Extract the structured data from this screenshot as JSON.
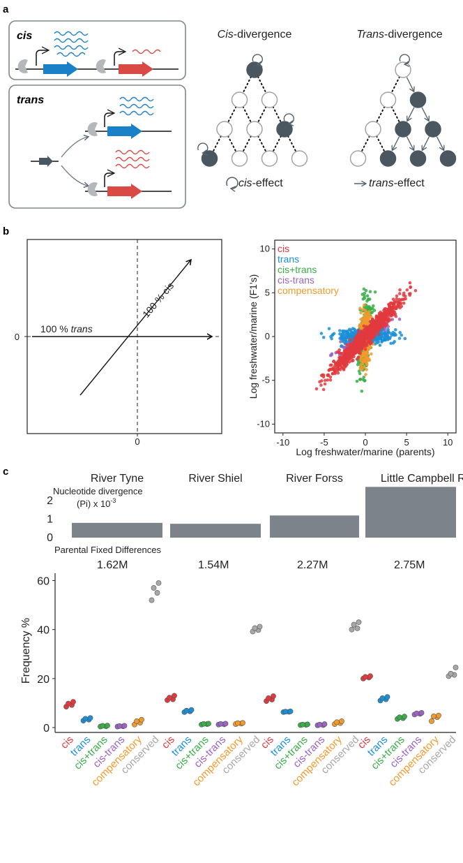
{
  "panel_a": {
    "letter": "a",
    "box_cis_label": "cis",
    "box_trans_label": "trans",
    "title_cis_italic": "Cis",
    "title_cis_rest": "-divergence",
    "title_trans_italic": "Trans",
    "title_trans_rest": "-divergence",
    "legend_cis_italic": "cis",
    "legend_cis_rest": "-effect",
    "legend_trans_italic": "trans",
    "legend_trans_rest": "-effect",
    "colors": {
      "blue": "#1a80c8",
      "red": "#d94a44",
      "node_dark": "#4a5660",
      "grey": "#9ea3a8"
    }
  },
  "panel_b": {
    "letter": "b",
    "schematic": {
      "label_100_cis": "100 % cis",
      "label_100_trans_num": "100 % ",
      "label_100_trans_word": "trans",
      "y_zero": "0",
      "x_zero": "0"
    },
    "legend": [
      {
        "name": "cis",
        "color": "#e0393e"
      },
      {
        "name": "trans",
        "color": "#1b8fd6"
      },
      {
        "name": "cis+trans",
        "color": "#3aad48"
      },
      {
        "name": "cis-trans",
        "color": "#9b63c4"
      },
      {
        "name": "compensatory",
        "color": "#f39a2b"
      }
    ]
  },
  "chart_data": [
    {
      "type": "scatter",
      "xlabel": "Log freshwater/marine (parents)",
      "ylabel": "Log freshwater/marine (F1's)",
      "xlim": [
        -11,
        11
      ],
      "ylim": [
        -11,
        11
      ],
      "xticks": [
        "-10",
        "-5",
        "0",
        "5",
        "10"
      ],
      "yticks": [
        "10",
        "5",
        "0",
        "-5",
        "-10"
      ],
      "legend_position": "top-left",
      "series": [
        {
          "name": "cis",
          "color": "#e0393e",
          "pattern": "diagonal y≈x, spans about -9 to 9"
        },
        {
          "name": "trans",
          "color": "#1b8fd6",
          "pattern": "horizontal y≈0, x from about -8 to 8"
        },
        {
          "name": "cis+trans",
          "color": "#3aad48",
          "pattern": "steep band above diagonal, y from about -9 to 10"
        },
        {
          "name": "cis-trans",
          "color": "#9b63c4",
          "pattern": "shallow band, x from about -8 to 8"
        },
        {
          "name": "compensatory",
          "color": "#f39a2b",
          "pattern": "vertical x≈0, y from about -6 to 8"
        }
      ]
    },
    {
      "type": "bar",
      "title": "Nucleotide divergence",
      "ylabel": "(Pi) x 10",
      "ylabel_sup": "-3",
      "categories": [
        "River Tyne",
        "River Shiel",
        "River Forss",
        "Little Campbell R."
      ],
      "values": [
        0.8,
        0.75,
        1.2,
        2.75
      ],
      "ylim": [
        0,
        2.8
      ],
      "yticks": [
        "2",
        "1",
        "0"
      ],
      "bar_color": "#7d838a"
    },
    {
      "type": "scatter",
      "title": "Parental Fixed Differences",
      "group_labels": [
        "1.62M",
        "1.54M",
        "2.27M",
        "2.75M"
      ],
      "ylabel": "Frequency %",
      "ylim": [
        -2,
        63
      ],
      "yticks": [
        "0",
        "20",
        "40",
        "60"
      ],
      "categories": [
        "cis",
        "trans",
        "cis+trans",
        "cis-trans",
        "compensatory",
        "conserved"
      ],
      "category_colors": [
        "#e0393e",
        "#1b8fd6",
        "#3aad48",
        "#9b63c4",
        "#f39a2b",
        "#a8a8a8"
      ],
      "groups": [
        {
          "name": "River Tyne",
          "values": [
            [
              8.5,
              9.2,
              9.8,
              10.5
            ],
            [
              2.8,
              3.2,
              3.6,
              3.9
            ],
            [
              0.4,
              0.5,
              0.7,
              0.8
            ],
            [
              0.4,
              0.5,
              0.6,
              0.7
            ],
            [
              1.2,
              2.0,
              2.6,
              3.2
            ],
            [
              52,
              55,
              57,
              59
            ]
          ]
        },
        {
          "name": "River Shiel",
          "values": [
            [
              11.2,
              11.5,
              12.2,
              13.0
            ],
            [
              6.3,
              6.6,
              6.9,
              7.2
            ],
            [
              1.2,
              1.4,
              1.5,
              1.6
            ],
            [
              1.2,
              1.3,
              1.5,
              1.6
            ],
            [
              1.4,
              1.6,
              1.8,
              1.9
            ],
            [
              39.2,
              39.8,
              40.6,
              41.2
            ]
          ]
        },
        {
          "name": "River Forss",
          "values": [
            [
              10.8,
              11.4,
              12.0,
              12.8
            ],
            [
              6.3,
              6.4,
              6.5,
              6.6
            ],
            [
              1.0,
              1.1,
              1.2,
              1.3
            ],
            [
              0.9,
              1.0,
              1.2,
              1.4
            ],
            [
              1.4,
              1.8,
              2.2,
              2.6
            ],
            [
              40.0,
              40.5,
              42.0,
              43.0
            ]
          ]
        },
        {
          "name": "Little Campbell R.",
          "values": [
            [
              20.0,
              20.4,
              20.7,
              21.0
            ],
            [
              11.0,
              11.5,
              12.0,
              12.5
            ],
            [
              3.5,
              3.8,
              4.2,
              4.5
            ],
            [
              5.3,
              5.6,
              5.8,
              6.0
            ],
            [
              2.6,
              4.2,
              4.6,
              4.9
            ],
            [
              21.0,
              21.5,
              22.0,
              24.5
            ]
          ]
        }
      ]
    }
  ]
}
